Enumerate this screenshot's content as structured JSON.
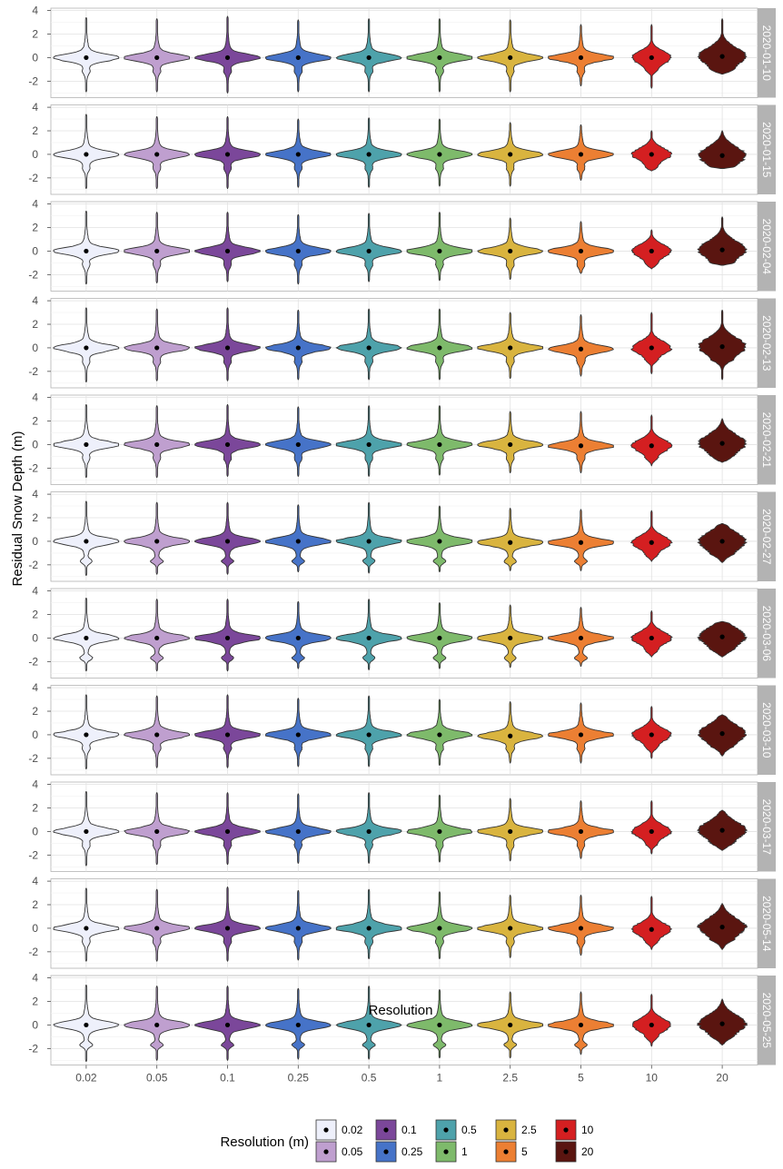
{
  "chart_data": {
    "type": "violin",
    "xlabel": "Resolution",
    "ylabel": "Residual Snow Depth (m)",
    "categories": [
      "0.02",
      "0.05",
      "0.1",
      "0.25",
      "0.5",
      "1",
      "2.5",
      "5",
      "10",
      "20"
    ],
    "colors": [
      "#eef0fb",
      "#bf9fcf",
      "#7b479a",
      "#4673c8",
      "#4ea2ab",
      "#7eba6b",
      "#d9b43f",
      "#ec7f33",
      "#d41f21",
      "#5a1510"
    ],
    "ylim": [
      -3.4,
      4.2
    ],
    "yticks": [
      "-2",
      "0",
      "2",
      "4"
    ],
    "panels": [
      {
        "label": "2020-01-10",
        "min": [
          -2.9,
          -2.9,
          -3.0,
          -2.9,
          -2.9,
          -2.9,
          -2.9,
          -2.4,
          -2.6,
          -1.4
        ],
        "max": [
          3.4,
          3.3,
          3.5,
          3.2,
          3.3,
          3.3,
          3.2,
          2.8,
          2.8,
          3.3
        ],
        "median": [
          0,
          0,
          0,
          0,
          0,
          0,
          0,
          0,
          0,
          0.1
        ]
      },
      {
        "label": "2020-01-15",
        "min": [
          -2.9,
          -2.9,
          -2.9,
          -2.8,
          -2.8,
          -2.7,
          -2.7,
          -2.2,
          -1.4,
          -1.2
        ],
        "max": [
          3.4,
          3.2,
          3.2,
          3.0,
          3.1,
          3.0,
          2.7,
          2.5,
          2.0,
          2.0
        ],
        "median": [
          0,
          0,
          0,
          0,
          0,
          0,
          0,
          0,
          0,
          -0.1
        ]
      },
      {
        "label": "2020-02-04",
        "min": [
          -2.8,
          -2.7,
          -2.6,
          -2.8,
          -2.6,
          -2.5,
          -2.4,
          -1.9,
          -1.5,
          -1.2
        ],
        "max": [
          3.4,
          3.3,
          3.3,
          3.1,
          3.2,
          3.3,
          2.8,
          2.5,
          1.8,
          2.9
        ],
        "median": [
          0,
          0,
          0,
          0,
          0,
          0,
          0,
          0,
          0,
          0.1
        ]
      },
      {
        "label": "2020-02-13",
        "min": [
          -2.9,
          -2.8,
          -2.8,
          -2.7,
          -2.7,
          -2.7,
          -2.6,
          -2.4,
          -2.2,
          -2.7
        ],
        "max": [
          3.4,
          3.3,
          3.4,
          3.2,
          3.3,
          3.3,
          3.0,
          2.8,
          3.0,
          3.2
        ],
        "median": [
          0,
          0,
          0,
          0,
          0,
          0,
          0,
          -0.1,
          0,
          0.1
        ]
      },
      {
        "label": "2020-02-21",
        "min": [
          -2.8,
          -2.8,
          -2.7,
          -2.7,
          -2.7,
          -2.6,
          -2.4,
          -2.4,
          -1.8,
          -1.5
        ],
        "max": [
          3.4,
          3.3,
          3.4,
          3.2,
          3.3,
          3.3,
          2.8,
          2.8,
          2.5,
          2.2
        ],
        "median": [
          0,
          0,
          0,
          0,
          0,
          0,
          0,
          -0.1,
          -0.1,
          0.1
        ]
      },
      {
        "label": "2020-02-27",
        "min": [
          -2.9,
          -2.8,
          -2.8,
          -2.6,
          -2.7,
          -2.6,
          -2.5,
          -2.5,
          -1.7,
          -1.8
        ],
        "max": [
          3.4,
          3.3,
          3.3,
          3.1,
          3.3,
          3.0,
          2.8,
          2.7,
          2.6,
          1.5
        ],
        "median": [
          0,
          0,
          0,
          0,
          0,
          0,
          -0.1,
          -0.1,
          -0.1,
          0
        ]
      },
      {
        "label": "2020-03-06",
        "min": [
          -2.8,
          -2.8,
          -2.8,
          -2.6,
          -2.7,
          -2.6,
          -2.5,
          -2.4,
          -1.6,
          -1.6
        ],
        "max": [
          3.4,
          3.3,
          3.3,
          3.1,
          3.3,
          3.0,
          2.8,
          2.6,
          2.3,
          1.4
        ],
        "median": [
          0,
          0,
          0,
          0,
          0,
          0,
          0,
          0,
          0,
          0.1
        ]
      },
      {
        "label": "2020-03-10",
        "min": [
          -2.9,
          -2.8,
          -2.8,
          -2.7,
          -2.7,
          -2.6,
          -2.4,
          -2.4,
          -2.0,
          -1.8
        ],
        "max": [
          3.4,
          3.3,
          3.4,
          3.1,
          3.3,
          3.0,
          2.8,
          2.7,
          2.4,
          1.7
        ],
        "median": [
          0,
          0,
          0,
          0,
          0,
          0,
          -0.1,
          0,
          0,
          0.1
        ]
      },
      {
        "label": "2020-03-17",
        "min": [
          -2.9,
          -2.8,
          -2.8,
          -2.7,
          -2.7,
          -2.6,
          -2.5,
          -2.3,
          -1.9,
          -1.6
        ],
        "max": [
          3.4,
          3.3,
          3.3,
          3.2,
          3.3,
          3.1,
          2.8,
          2.6,
          2.6,
          1.8
        ],
        "median": [
          0,
          0,
          0,
          0,
          0,
          0,
          0,
          0,
          0,
          0.1
        ]
      },
      {
        "label": "2020-05-14",
        "min": [
          -2.8,
          -2.8,
          -2.8,
          -2.7,
          -2.6,
          -2.6,
          -2.5,
          -2.3,
          -1.8,
          -1.8
        ],
        "max": [
          3.4,
          3.3,
          3.5,
          3.2,
          3.3,
          3.1,
          2.8,
          2.8,
          2.7,
          2.1
        ],
        "median": [
          0,
          0,
          0,
          0,
          0,
          0,
          0,
          0,
          -0.1,
          0.1
        ]
      },
      {
        "label": "2020-05-25",
        "min": [
          -3.1,
          -3.0,
          -3.0,
          -2.9,
          -2.9,
          -2.8,
          -2.8,
          -2.5,
          -1.8,
          -1.7
        ],
        "max": [
          3.4,
          3.3,
          3.3,
          3.1,
          3.3,
          3.0,
          2.8,
          2.8,
          2.6,
          2.2
        ],
        "median": [
          0,
          0,
          0,
          0,
          0,
          0,
          0,
          0,
          0,
          0.1
        ]
      }
    ],
    "legend": {
      "title": "Resolution (m)",
      "placement": "bottom",
      "entries": [
        "0.02",
        "0.05",
        "0.1",
        "0.25",
        "0.5",
        "1",
        "2.5",
        "5",
        "10",
        "20"
      ]
    },
    "grid": true
  }
}
